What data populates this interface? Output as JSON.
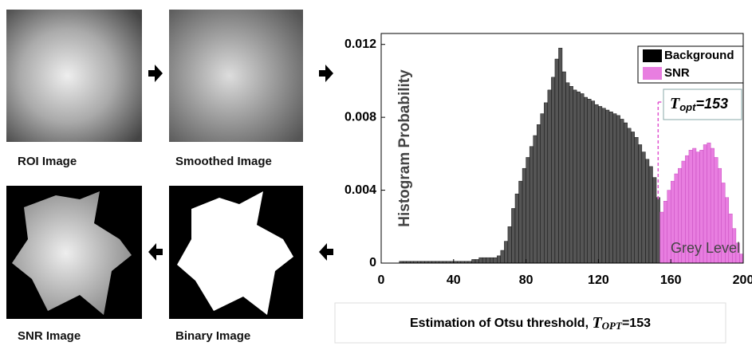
{
  "panels": {
    "roi": "ROI Image",
    "smoothed": "Smoothed Image",
    "snr": "SNR Image",
    "binary": "Binary Image"
  },
  "chart_data": {
    "type": "histogram",
    "ylabel": "Histogram Probability",
    "xlabel": "Grey Level",
    "threshold": 153,
    "annotation": [
      "T",
      "opt",
      "="
    ],
    "caption": [
      "Estimation of Otsu threshold, ",
      "T",
      "OPT",
      "="
    ],
    "xlim": [
      0,
      200
    ],
    "ylim": [
      0,
      0.0126
    ],
    "xticks": [
      0,
      40,
      80,
      120,
      160,
      200
    ],
    "yticks": [
      0,
      0.004,
      0.008,
      0.012
    ],
    "legend": "top-right",
    "bins": [
      0,
      2,
      4,
      6,
      8,
      10,
      12,
      14,
      16,
      18,
      20,
      22,
      24,
      26,
      28,
      30,
      32,
      34,
      36,
      38,
      40,
      42,
      44,
      46,
      48,
      50,
      52,
      54,
      56,
      58,
      60,
      62,
      64,
      66,
      68,
      70,
      72,
      74,
      76,
      78,
      80,
      82,
      84,
      86,
      88,
      90,
      92,
      94,
      96,
      98,
      100,
      102,
      104,
      106,
      108,
      110,
      112,
      114,
      116,
      118,
      120,
      122,
      124,
      126,
      128,
      130,
      132,
      134,
      136,
      138,
      140,
      142,
      144,
      146,
      148,
      150,
      152,
      154,
      156,
      158,
      160,
      162,
      164,
      166,
      168,
      170,
      172,
      174,
      176,
      178,
      180,
      182,
      184,
      186,
      188,
      190,
      192,
      194,
      196,
      198,
      200
    ],
    "series": [
      {
        "name": "Background",
        "color": "#000000",
        "values": [
          0,
          0,
          0,
          0,
          0,
          0.0001,
          0.0001,
          0.0001,
          0.0001,
          0.0001,
          0.0001,
          0.0001,
          0.0001,
          0.0001,
          0.0001,
          0.0001,
          0.0001,
          0.0001,
          0.0001,
          0.0001,
          0.0001,
          0.0001,
          0.0001,
          0.0001,
          0.0001,
          0.0002,
          0.0002,
          0.0003,
          0.0003,
          0.0003,
          0.0003,
          0.0003,
          0.0004,
          0.0007,
          0.0012,
          0.002,
          0.003,
          0.0038,
          0.0045,
          0.0052,
          0.0058,
          0.0064,
          0.007,
          0.0076,
          0.0082,
          0.0088,
          0.0095,
          0.0102,
          0.0112,
          0.0118,
          0.0105,
          0.0099,
          0.0097,
          0.0095,
          0.0094,
          0.0093,
          0.0091,
          0.009,
          0.0089,
          0.0087,
          0.0086,
          0.0085,
          0.0084,
          0.0083,
          0.0082,
          0.0081,
          0.0079,
          0.0077,
          0.0074,
          0.0072,
          0.0069,
          0.0065,
          0.0061,
          0.0057,
          0.0053,
          0.0047,
          0.0036,
          null,
          null,
          null,
          null,
          null,
          null,
          null,
          null,
          null,
          null,
          null,
          null,
          null,
          null,
          null,
          null,
          null,
          null,
          null,
          null,
          null,
          null,
          null
        ]
      },
      {
        "name": "SNR",
        "color": "#e87ee0",
        "values": [
          null,
          null,
          null,
          null,
          null,
          null,
          null,
          null,
          null,
          null,
          null,
          null,
          null,
          null,
          null,
          null,
          null,
          null,
          null,
          null,
          null,
          null,
          null,
          null,
          null,
          null,
          null,
          null,
          null,
          null,
          null,
          null,
          null,
          null,
          null,
          null,
          null,
          null,
          null,
          null,
          null,
          null,
          null,
          null,
          null,
          null,
          null,
          null,
          null,
          null,
          null,
          null,
          null,
          null,
          null,
          null,
          null,
          null,
          null,
          null,
          null,
          null,
          null,
          null,
          null,
          null,
          null,
          null,
          null,
          null,
          null,
          null,
          null,
          null,
          null,
          null,
          null,
          0.0028,
          0.0034,
          0.004,
          0.0045,
          0.0049,
          0.0052,
          0.0056,
          0.0059,
          0.0062,
          0.0063,
          0.0061,
          0.0062,
          0.0065,
          0.0066,
          0.0063,
          0.0058,
          0.0052,
          0.0044,
          0.0036,
          0.0027,
          0.0019,
          0.0011,
          0.0005
        ]
      }
    ]
  }
}
